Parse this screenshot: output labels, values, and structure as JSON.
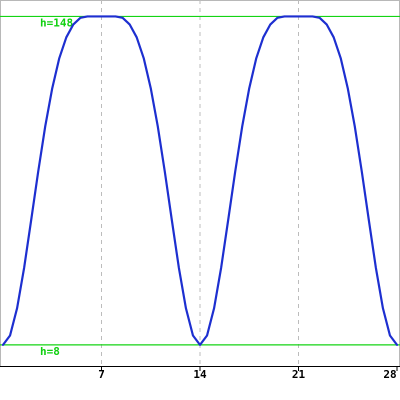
{
  "chart_data": {
    "type": "line",
    "title": "",
    "xlabel": "",
    "ylabel": "",
    "xlim": [
      0,
      28
    ],
    "ylim": [
      -1,
      155
    ],
    "x_ticks": [
      7,
      14,
      21,
      28
    ],
    "tick_labels": [
      "7",
      "14",
      "21",
      "28"
    ],
    "grid": "vertical dashed at x ticks",
    "legend": "none",
    "reference_lines": [
      {
        "label": "h=148",
        "y": 148
      },
      {
        "label": "h=8",
        "y": 8
      }
    ],
    "series": [
      {
        "x": [
          0,
          0.5,
          1,
          1.5,
          2,
          2.5,
          3,
          3.5,
          4,
          4.5,
          5,
          5.5,
          6,
          6.5,
          7,
          7.5,
          8,
          8.5,
          9,
          9.5,
          10,
          10.5,
          11,
          11.5,
          12,
          12.5,
          13,
          13.5,
          14,
          14.5,
          15,
          15.5,
          16,
          16.5,
          17,
          17.5,
          18,
          18.5,
          19,
          19.5,
          20,
          20.5,
          21,
          21.5,
          22,
          22.5,
          23,
          23.5,
          24,
          24.5,
          25,
          25.5,
          26,
          26.5,
          27,
          27.5,
          28
        ],
        "values": [
          8,
          12,
          23.6,
          40.8,
          61.1,
          81.8,
          101.1,
          117.4,
          130.2,
          139.1,
          144.6,
          147.4,
          148,
          148,
          148,
          148,
          148,
          147.4,
          144.6,
          139.1,
          130.2,
          117.4,
          101.1,
          81.8,
          61.1,
          40.8,
          23.6,
          12,
          8,
          12,
          23.6,
          40.8,
          61.1,
          81.8,
          101.1,
          117.4,
          130.2,
          139.1,
          144.6,
          147.4,
          148,
          148,
          148,
          148,
          148,
          147.4,
          144.6,
          139.1,
          130.2,
          117.4,
          101.1,
          81.8,
          61.1,
          40.8,
          23.6,
          12,
          8
        ]
      }
    ]
  },
  "colors": {
    "series": "#1d2fd0",
    "reference_lines": "#14d414",
    "grid": "#bcbcbc",
    "background": "#ffffff"
  }
}
